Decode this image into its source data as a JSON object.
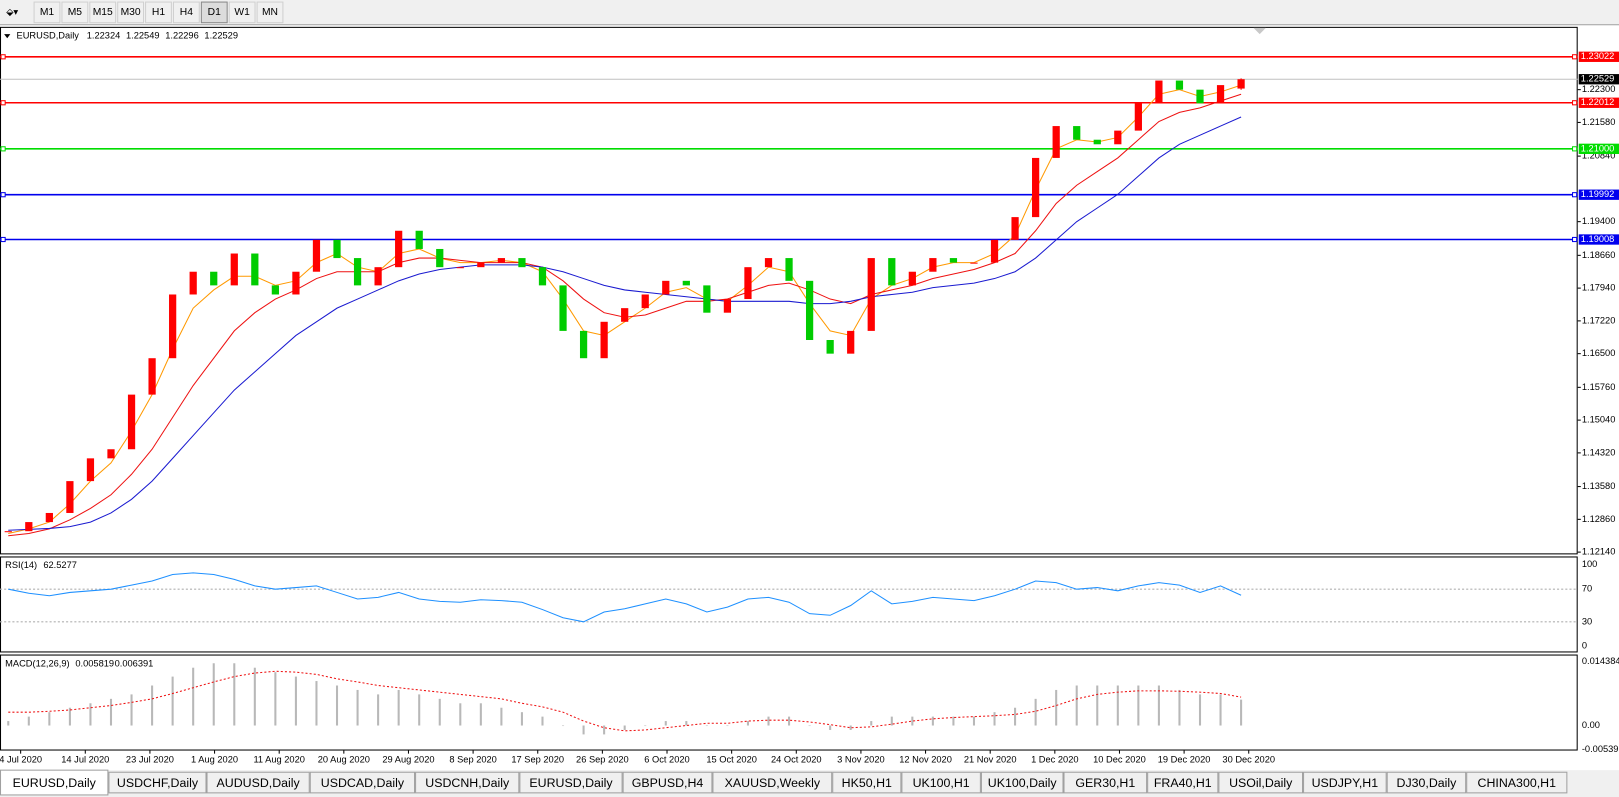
{
  "toolbar": {
    "timeframes": [
      "M1",
      "M5",
      "M15",
      "M30",
      "H1",
      "H4",
      "D1",
      "W1",
      "MN"
    ],
    "active_timeframe": "D1"
  },
  "chart": {
    "type": "candlestick",
    "title": "EURUSD,Daily",
    "last_bar": {
      "open": 1.22324,
      "high": 1.22549,
      "low": 1.22296
    },
    "up_color": "#ff0000",
    "down_color": "#00cc00",
    "close": [
      1.126,
      1.128,
      1.13,
      1.137,
      1.142,
      1.144,
      1.156,
      1.164,
      1.178,
      1.183,
      1.18,
      1.187,
      1.18,
      1.178,
      1.183,
      1.19,
      1.186,
      1.18,
      1.184,
      1.192,
      1.188,
      1.184,
      1.184,
      1.185,
      1.186,
      1.184,
      1.18,
      1.17,
      1.164,
      1.172,
      1.175,
      1.178,
      1.181,
      1.18,
      1.174,
      1.177,
      1.184,
      1.186,
      1.181,
      1.168,
      1.165,
      1.17,
      1.186,
      1.18,
      1.183,
      1.186,
      1.185,
      1.185,
      1.19,
      1.195,
      1.208,
      1.215,
      1.212,
      1.211,
      1.214,
      1.22,
      1.225,
      1.223,
      1.22,
      1.224,
      1.22529
    ],
    "moving_averages": [
      {
        "color": "#ff9900",
        "values": [
          1.1255,
          1.1265,
          1.128,
          1.132,
          1.137,
          1.141,
          1.148,
          1.156,
          1.166,
          1.175,
          1.179,
          1.182,
          1.182,
          1.18,
          1.181,
          1.185,
          1.187,
          1.184,
          1.183,
          1.187,
          1.188,
          1.186,
          1.185,
          1.185,
          1.1855,
          1.185,
          1.183,
          1.177,
          1.17,
          1.169,
          1.172,
          1.175,
          1.1785,
          1.1795,
          1.177,
          1.1765,
          1.18,
          1.184,
          1.183,
          1.176,
          1.17,
          1.169,
          1.177,
          1.18,
          1.1815,
          1.184,
          1.185,
          1.185,
          1.187,
          1.191,
          1.201,
          1.21,
          1.212,
          1.2115,
          1.2125,
          1.217,
          1.222,
          1.223,
          1.2215,
          1.2225,
          1.224
        ]
      },
      {
        "color": "#ee1111",
        "values": [
          1.125,
          1.1255,
          1.1265,
          1.1285,
          1.131,
          1.134,
          1.1385,
          1.144,
          1.151,
          1.158,
          1.164,
          1.17,
          1.174,
          1.177,
          1.179,
          1.1815,
          1.183,
          1.183,
          1.183,
          1.185,
          1.186,
          1.186,
          1.1855,
          1.185,
          1.185,
          1.185,
          1.184,
          1.181,
          1.177,
          1.174,
          1.173,
          1.1735,
          1.175,
          1.1765,
          1.1765,
          1.177,
          1.1785,
          1.18,
          1.1805,
          1.179,
          1.177,
          1.176,
          1.178,
          1.179,
          1.18,
          1.1815,
          1.1825,
          1.1835,
          1.185,
          1.187,
          1.192,
          1.198,
          1.202,
          1.205,
          1.208,
          1.212,
          1.216,
          1.218,
          1.219,
          1.2205,
          1.222
        ]
      },
      {
        "color": "#1a1ad0",
        "values": [
          1.1262,
          1.1264,
          1.1266,
          1.127,
          1.128,
          1.13,
          1.133,
          1.137,
          1.142,
          1.147,
          1.152,
          1.157,
          1.161,
          1.165,
          1.169,
          1.172,
          1.175,
          1.177,
          1.179,
          1.181,
          1.1825,
          1.1835,
          1.184,
          1.1845,
          1.1845,
          1.1845,
          1.184,
          1.183,
          1.1815,
          1.18,
          1.179,
          1.1785,
          1.178,
          1.1775,
          1.177,
          1.1765,
          1.1765,
          1.1765,
          1.1765,
          1.176,
          1.176,
          1.1765,
          1.1775,
          1.178,
          1.1785,
          1.1795,
          1.18,
          1.1805,
          1.1815,
          1.183,
          1.186,
          1.19,
          1.194,
          1.197,
          1.2,
          1.204,
          1.208,
          1.211,
          1.213,
          1.215,
          1.217
        ]
      }
    ],
    "ylim": [
      1.1209,
      1.2368
    ],
    "yticks": [
      {
        "value": 1.223,
        "label": "1.22300"
      },
      {
        "value": 1.2158,
        "label": "1.21580"
      },
      {
        "value": 1.2084,
        "label": "1.20840"
      },
      {
        "value": 1.194,
        "label": "1.19400"
      },
      {
        "value": 1.1866,
        "label": "1.18660"
      },
      {
        "value": 1.1794,
        "label": "1.17940"
      },
      {
        "value": 1.1722,
        "label": "1.17220"
      },
      {
        "value": 1.165,
        "label": "1.16500"
      },
      {
        "value": 1.1576,
        "label": "1.15760"
      },
      {
        "value": 1.1504,
        "label": "1.15040"
      },
      {
        "value": 1.1432,
        "label": "1.14320"
      },
      {
        "value": 1.1358,
        "label": "1.13580"
      },
      {
        "value": 1.1286,
        "label": "1.12860"
      },
      {
        "value": 1.1214,
        "label": "1.12140"
      }
    ],
    "levels": [
      {
        "value": 1.23022,
        "color": "#ff0000"
      },
      {
        "value": 1.22012,
        "color": "#ff0000"
      },
      {
        "value": {
          "value": 1.21,
          "label": "1.21000"
        },
        "color": "#00dd00"
      },
      {
        "value": 1.19992,
        "color": "#0000ee"
      },
      {
        "value": 1.19008,
        "color": "#0000ee"
      }
    ]
  },
  "date_labels": [
    "4 Jul 2020",
    "14 Jul 2020",
    "23 Jul 2020",
    "1 Aug 2020",
    "11 Aug 2020",
    "20 Aug 2020",
    "29 Aug 2020",
    "8 Sep 2020",
    "17 Sep 2020",
    "26 Sep 2020",
    "6 Oct 2020",
    "15 Oct 2020",
    "24 Oct 2020",
    "3 Nov 2020",
    "12 Nov 2020",
    "21 Nov 2020",
    "1 Dec 2020",
    "10 Dec 2020",
    "19 Dec 2020",
    "30 Dec 2020"
  ],
  "rsi": {
    "title": "RSI(14)",
    "color": "#1e90ff",
    "ylim": [
      0,
      100
    ],
    "yticks": [
      0,
      30,
      70,
      100
    ],
    "levels": [
      30,
      70
    ],
    "values": [
      70,
      65,
      62,
      66,
      68,
      70,
      75,
      80,
      88,
      90,
      88,
      82,
      74,
      70,
      72,
      74,
      66,
      58,
      60,
      66,
      58,
      55,
      54,
      57,
      56,
      54,
      45,
      35,
      30,
      42,
      46,
      52,
      58,
      52,
      42,
      48,
      58,
      60,
      54,
      40,
      38,
      50,
      68,
      52,
      55,
      60,
      58,
      56,
      62,
      70,
      80,
      78,
      70,
      72,
      68,
      74,
      78,
      75,
      66,
      74,
      62.5277
    ]
  },
  "macd": {
    "title": "MACD(12,26,9)",
    "histogram_color": "#b8b8b8",
    "signal_color": "#ee1111",
    "ylim": [
      -0.005396,
      0.0155
    ],
    "yticks": [
      -0.005396,
      {
        "value": 0,
        "label": "0.00"
      },
      0.014384
    ],
    "histogram": [
      0.001,
      0.002,
      0.003,
      0.004,
      0.005,
      0.006,
      0.007,
      0.009,
      0.011,
      0.013,
      0.014,
      0.014,
      0.013,
      0.012,
      0.011,
      0.01,
      0.009,
      0.008,
      0.007,
      0.008,
      0.007,
      0.006,
      0.005,
      0.005,
      0.004,
      0.003,
      0.002,
      0.0,
      -0.002,
      -0.002,
      -0.001,
      0.0,
      0.001,
      0.001,
      0.0,
      0.0,
      0.001,
      0.002,
      0.002,
      0.0,
      -0.001,
      -0.001,
      0.001,
      0.002,
      0.002,
      0.002,
      0.002,
      0.002,
      0.003,
      0.004,
      0.006,
      0.008,
      0.009,
      0.009,
      0.009,
      0.009,
      0.009,
      0.008,
      0.007,
      0.007,
      0.005819
    ],
    "signal": [
      0.003,
      0.003,
      0.0032,
      0.0035,
      0.004,
      0.0045,
      0.0052,
      0.006,
      0.0072,
      0.0085,
      0.0098,
      0.011,
      0.0118,
      0.0122,
      0.012,
      0.0115,
      0.0105,
      0.0098,
      0.009,
      0.0085,
      0.008,
      0.0075,
      0.007,
      0.0065,
      0.006,
      0.005,
      0.0042,
      0.003,
      0.001,
      -0.0005,
      -0.0012,
      -0.001,
      -0.0005,
      0.0,
      0.0005,
      0.0005,
      0.001,
      0.0012,
      0.0012,
      0.0008,
      0.0002,
      -0.0005,
      -0.0003,
      0.0003,
      0.001,
      0.0015,
      0.0018,
      0.002,
      0.0022,
      0.0025,
      0.0032,
      0.0045,
      0.006,
      0.007,
      0.0075,
      0.0078,
      0.0078,
      0.0077,
      0.0075,
      0.0072,
      0.006391
    ]
  },
  "tabs": [
    "EURUSD,Daily",
    "USDCHF,Daily",
    "AUDUSD,Daily",
    "USDCAD,Daily",
    "USDCNH,Daily",
    "EURUSD,Daily",
    "GBPUSD,H4",
    "XAUUSD,Weekly",
    "HK50,H1",
    "UK100,H1",
    "UK100,Daily",
    "GER30,H1",
    "FRA40,H1",
    "USOil,Daily",
    "USDJPY,H1",
    "DJ30,Daily",
    "CHINA300,H1"
  ],
  "active_tab": "EURUSD,Daily"
}
